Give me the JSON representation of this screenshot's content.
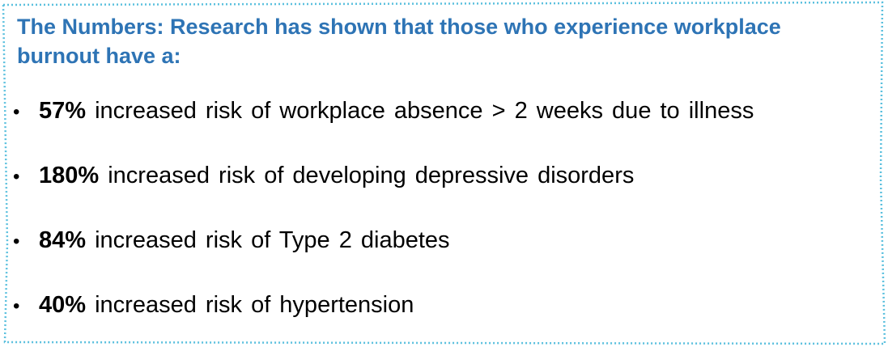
{
  "colors": {
    "heading": "#2e74b5",
    "border": "#5bc0de",
    "text": "#000000"
  },
  "heading": "The Numbers: Research has shown that those who experience workplace burnout have a:",
  "bullet_glyph": "•",
  "items": [
    {
      "value": "57%",
      "text": "increased risk of workplace absence > 2 weeks due to illness"
    },
    {
      "value": "180%",
      "text": "increased risk of developing depressive disorders"
    },
    {
      "value": "84%",
      "text": "increased risk of Type 2 diabetes"
    },
    {
      "value": "40%",
      "text": "increased risk of hypertension"
    }
  ]
}
